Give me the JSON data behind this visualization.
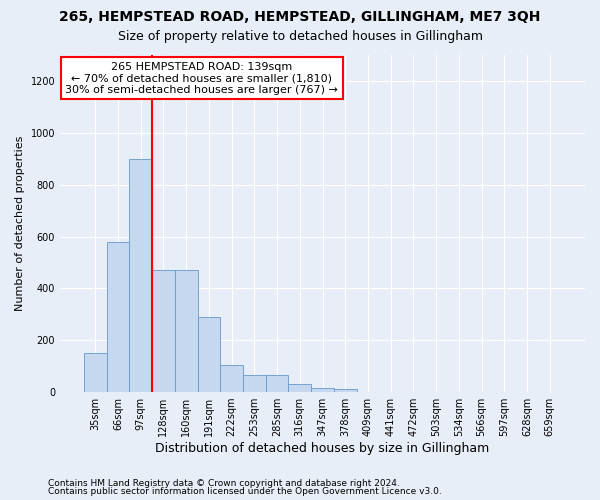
{
  "title1": "265, HEMPSTEAD ROAD, HEMPSTEAD, GILLINGHAM, ME7 3QH",
  "title2": "Size of property relative to detached houses in Gillingham",
  "xlabel": "Distribution of detached houses by size in Gillingham",
  "ylabel": "Number of detached properties",
  "footnote1": "Contains HM Land Registry data © Crown copyright and database right 2024.",
  "footnote2": "Contains public sector information licensed under the Open Government Licence v3.0.",
  "annotation_line1": "265 HEMPSTEAD ROAD: 139sqm",
  "annotation_line2": "← 70% of detached houses are smaller (1,810)",
  "annotation_line3": "30% of semi-detached houses are larger (767) →",
  "bin_labels": [
    "35sqm",
    "66sqm",
    "97sqm",
    "128sqm",
    "160sqm",
    "191sqm",
    "222sqm",
    "253sqm",
    "285sqm",
    "316sqm",
    "347sqm",
    "378sqm",
    "409sqm",
    "441sqm",
    "472sqm",
    "503sqm",
    "534sqm",
    "566sqm",
    "597sqm",
    "628sqm",
    "659sqm"
  ],
  "bar_values": [
    150,
    580,
    900,
    470,
    470,
    290,
    105,
    65,
    65,
    30,
    15,
    10,
    0,
    0,
    0,
    0,
    0,
    0,
    0,
    0,
    0
  ],
  "bar_color": "#c5d8f0",
  "bar_edge_color": "#6699cc",
  "red_line_x": 2.5,
  "marker_color": "red",
  "ylim": [
    0,
    1300
  ],
  "yticks": [
    0,
    200,
    400,
    600,
    800,
    1000,
    1200
  ],
  "bg_color": "#e8eef8",
  "plot_bg_color": "#e8eef8",
  "annotation_box_color": "white",
  "annotation_box_edge": "red",
  "title1_fontsize": 10,
  "title2_fontsize": 9,
  "xlabel_fontsize": 9,
  "ylabel_fontsize": 8,
  "tick_fontsize": 7,
  "footnote_fontsize": 6.5
}
